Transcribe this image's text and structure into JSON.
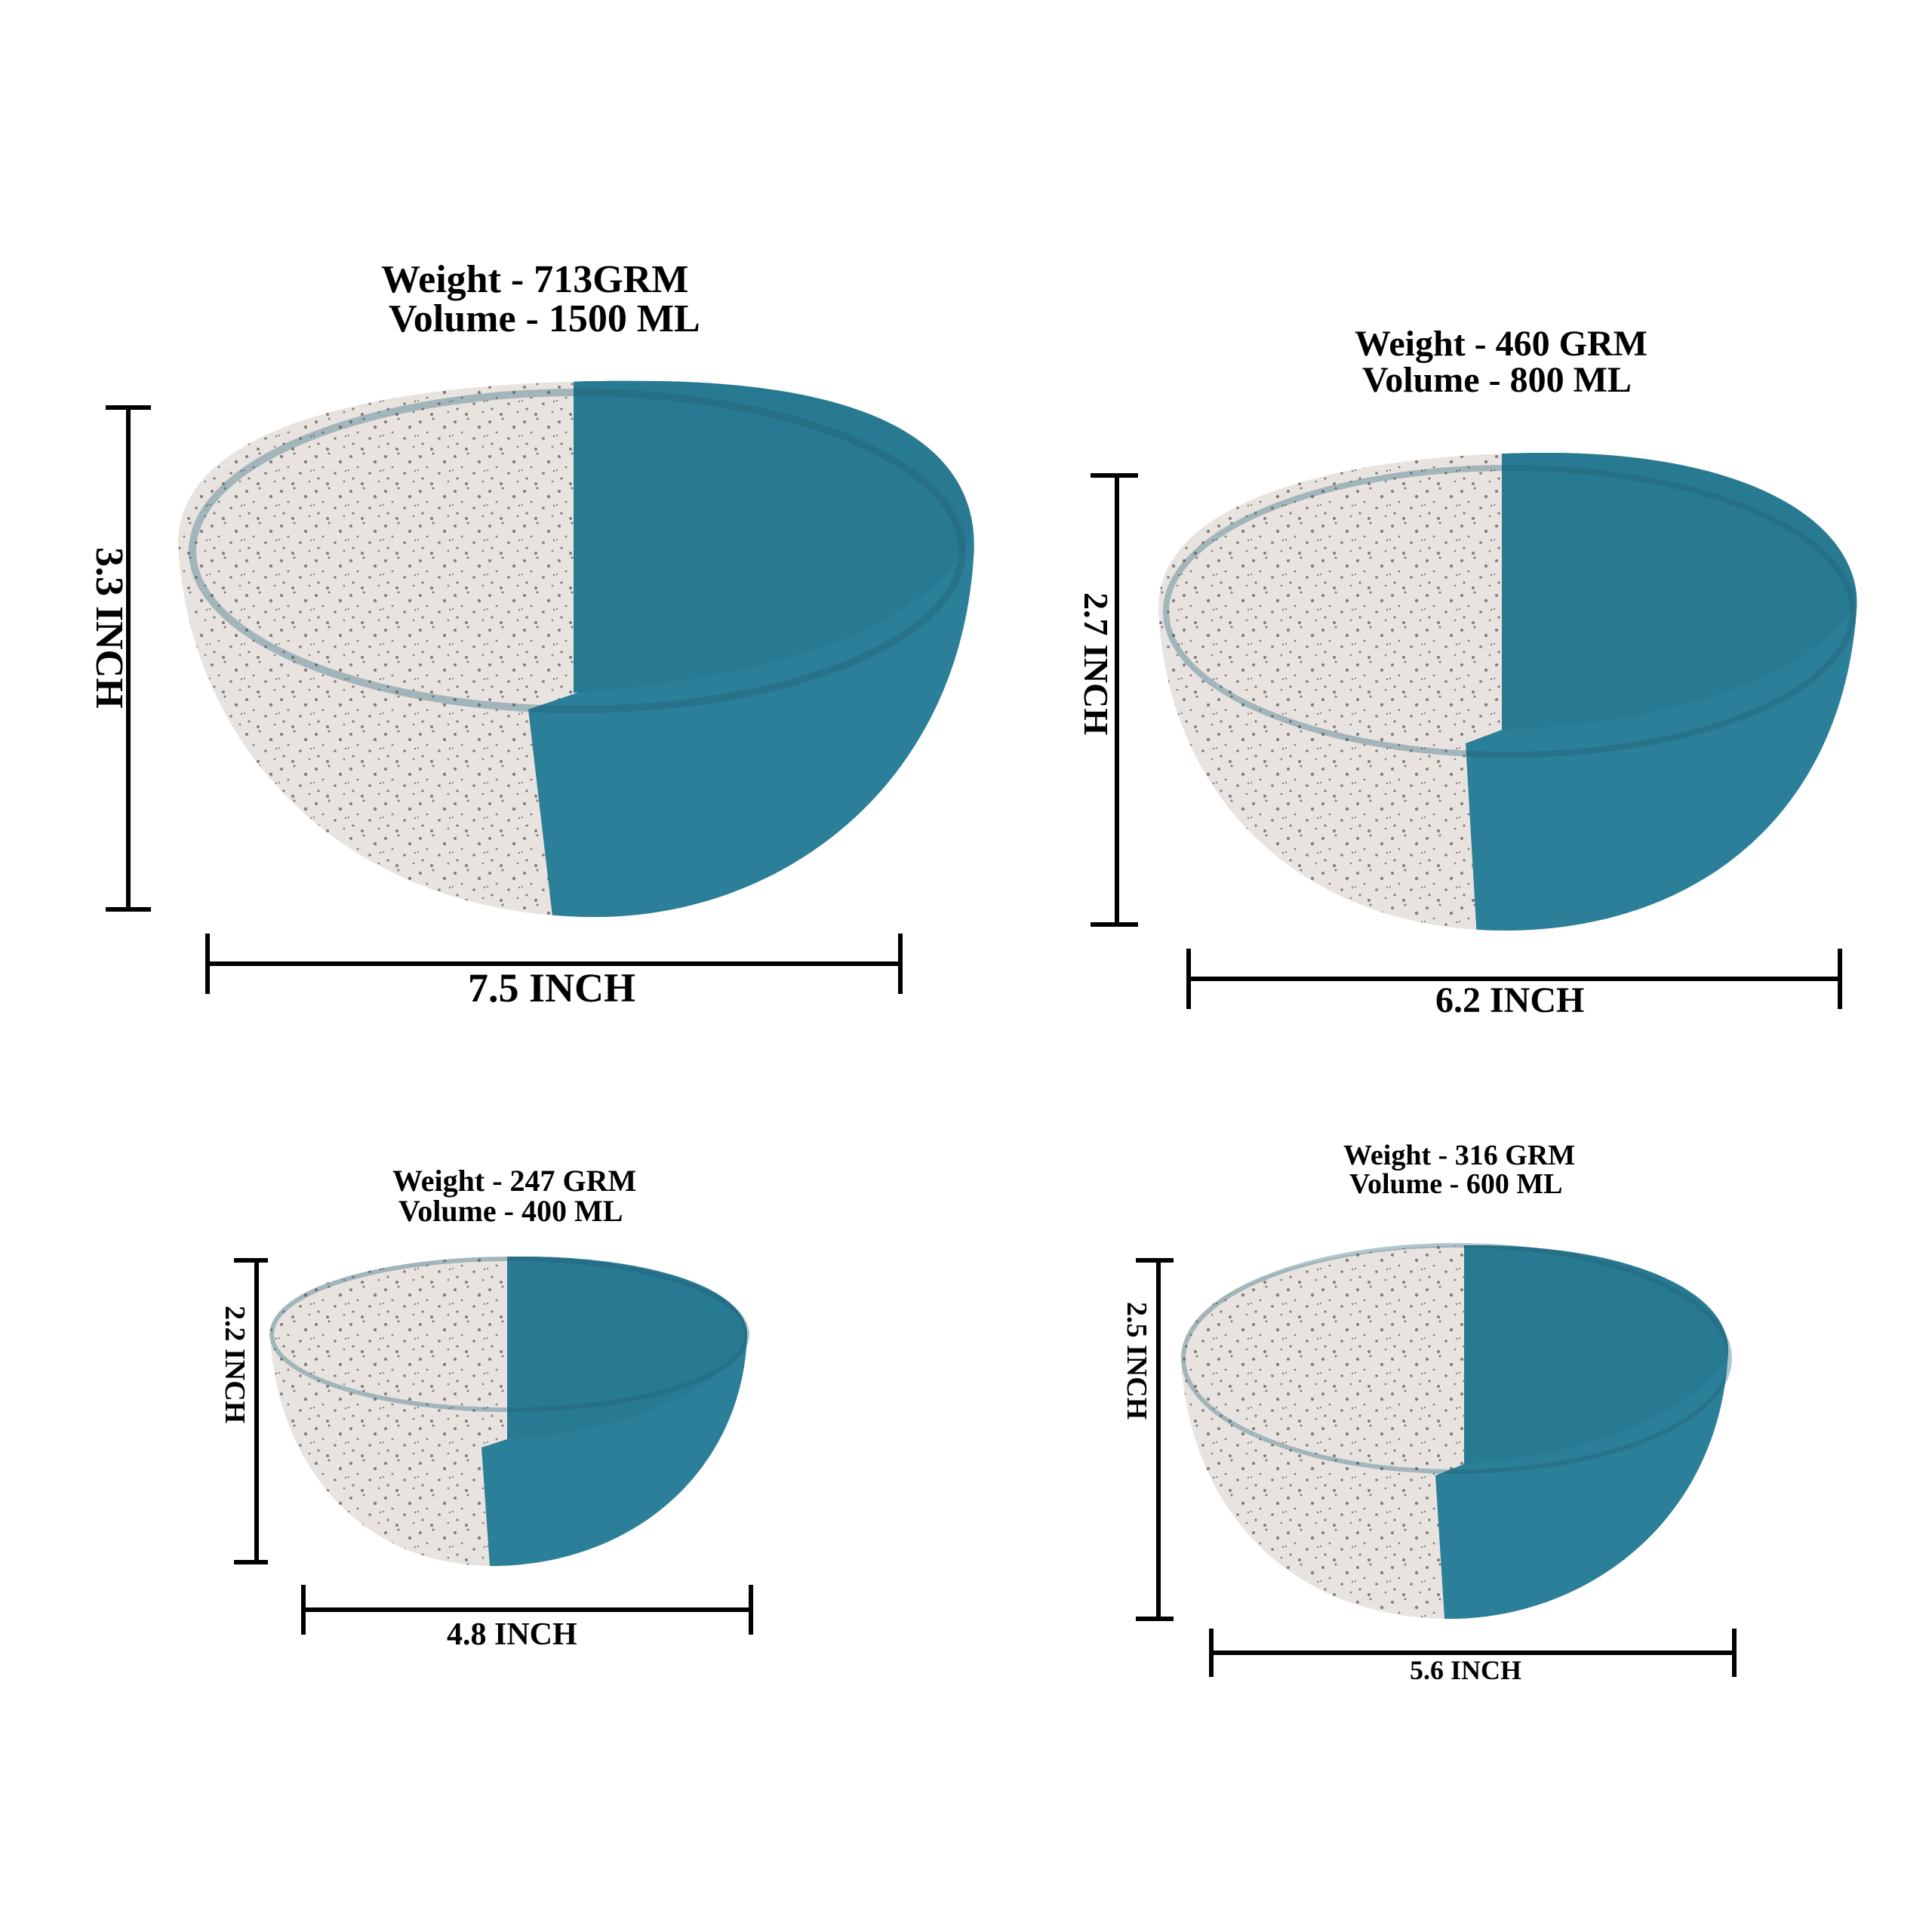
{
  "colors": {
    "background": "#ffffff",
    "bowl_white": "#e9e3e0",
    "bowl_white_inner": "#d9d3d1",
    "bowl_teal": "#2c7f98",
    "bowl_teal_dark": "#205f74",
    "speckle": "#2a2a2a",
    "line": "#000000"
  },
  "bowls": [
    {
      "id": "large",
      "weight": "Weight -  713GRM",
      "volume": "Volume - 1500 ML",
      "width_label": "7.5 INCH",
      "height_label": "3.3 INCH"
    },
    {
      "id": "medium",
      "weight": "Weight - 460 GRM",
      "volume": "Volume - 800 ML",
      "width_label": "6.2 INCH",
      "height_label": "2.7 INCH"
    },
    {
      "id": "small",
      "weight": "Weight - 247 GRM",
      "volume": "Volume - 400 ML",
      "width_label": "4.8 INCH",
      "height_label": "2.2 INCH"
    },
    {
      "id": "small-medium",
      "weight": "Weight - 316 GRM",
      "volume": "Volume - 600 ML",
      "width_label": "5.6 INCH",
      "height_label": "2.5 INCH"
    }
  ]
}
